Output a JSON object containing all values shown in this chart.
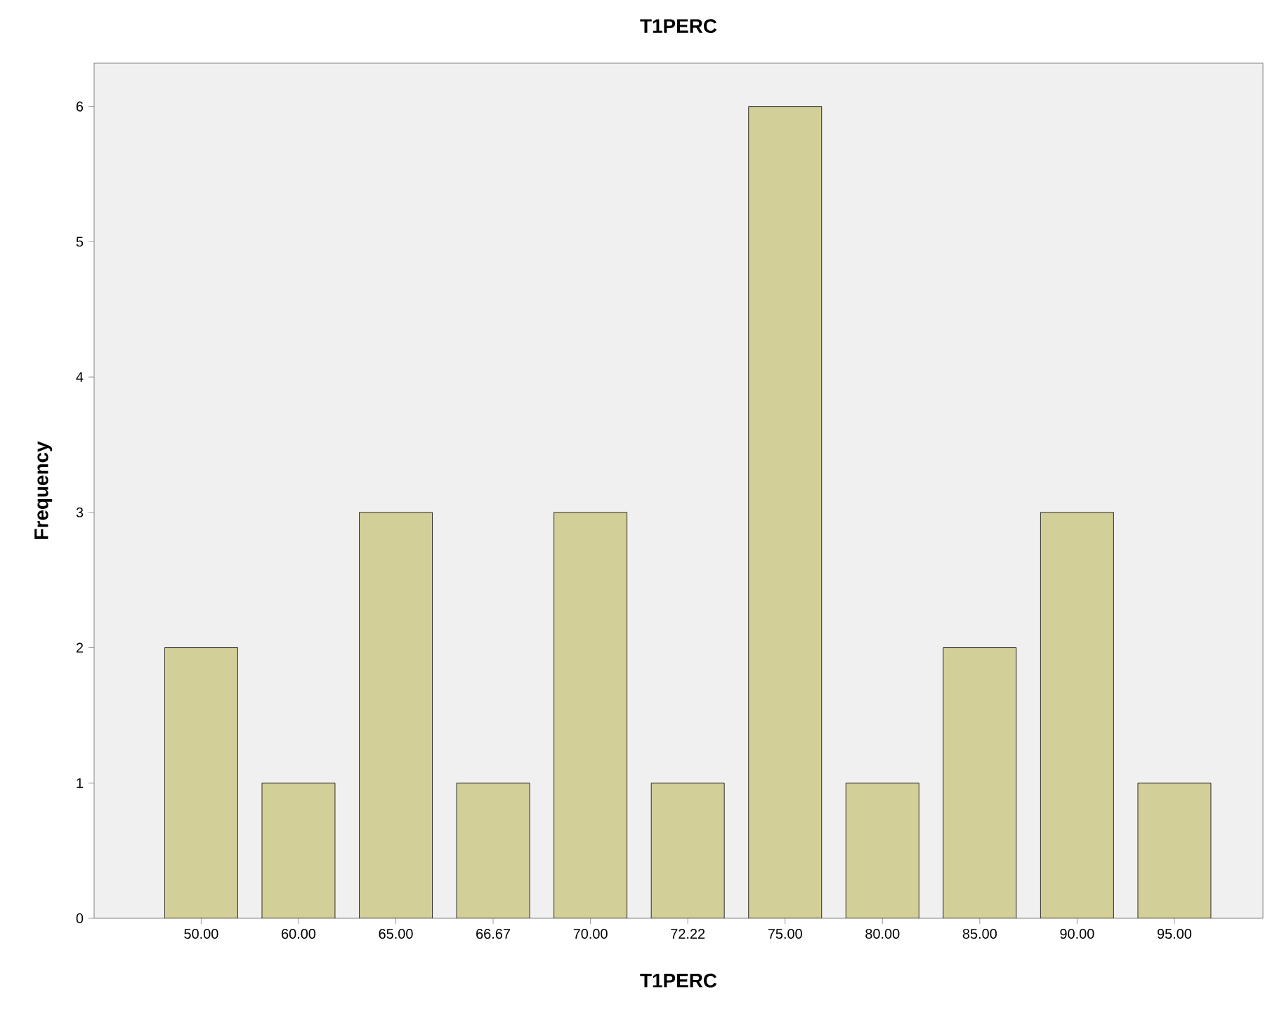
{
  "chart_data": {
    "type": "bar",
    "title": "T1PERC",
    "xlabel": "T1PERC",
    "ylabel": "Frequency",
    "categories": [
      "50.00",
      "60.00",
      "65.00",
      "66.67",
      "70.00",
      "72.22",
      "75.00",
      "80.00",
      "85.00",
      "90.00",
      "95.00"
    ],
    "values": [
      2,
      1,
      3,
      1,
      3,
      1,
      6,
      1,
      2,
      3,
      1
    ],
    "color": "#d3cf98",
    "ylim": [
      0,
      6.32
    ],
    "yticks": [
      0,
      1,
      2,
      3,
      4,
      5,
      6
    ]
  }
}
